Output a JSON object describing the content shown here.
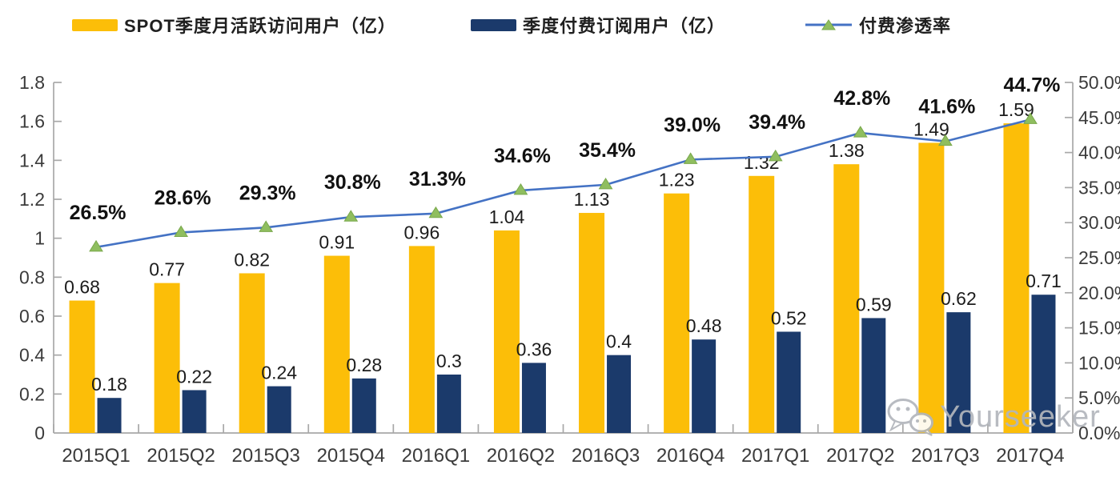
{
  "legend": {
    "items": [
      {
        "label": "SPOT季度月活跃访问用户（亿）",
        "swatch": "bar",
        "color": "#FCBE08"
      },
      {
        "label": "季度付费订阅用户（亿）",
        "swatch": "bar",
        "color": "#1B3A6B"
      },
      {
        "label": "付费渗透率",
        "swatch": "line-triangle",
        "line_color": "#4472C4",
        "marker_color": "#8FBE5F"
      }
    ]
  },
  "watermark": {
    "text": "Yourseeker",
    "icon": "wechat-icon",
    "color": "#b2b6bc"
  },
  "chart_data": {
    "type": "combo",
    "title": "",
    "legend_position": "top",
    "grid": false,
    "categories": [
      "2015Q1",
      "2015Q2",
      "2015Q3",
      "2015Q4",
      "2016Q1",
      "2016Q2",
      "2016Q3",
      "2016Q4",
      "2017Q1",
      "2017Q2",
      "2017Q3",
      "2017Q4"
    ],
    "series": [
      {
        "name": "SPOT季度月活跃访问用户（亿）",
        "type": "bar",
        "axis": "left",
        "color": "#FCBE08",
        "values": [
          0.68,
          0.77,
          0.82,
          0.91,
          0.96,
          1.04,
          1.13,
          1.23,
          1.32,
          1.38,
          1.49,
          1.59
        ],
        "labels": [
          "0.68",
          "0.77",
          "0.82",
          "0.91",
          "0.96",
          "1.04",
          "1.13",
          "1.23",
          "1.32",
          "1.38",
          "1.49",
          "1.59"
        ]
      },
      {
        "name": "季度付费订阅用户（亿）",
        "type": "bar",
        "axis": "left",
        "color": "#1B3A6B",
        "values": [
          0.18,
          0.22,
          0.24,
          0.28,
          0.3,
          0.36,
          0.4,
          0.48,
          0.52,
          0.59,
          0.62,
          0.71
        ],
        "labels": [
          "0.18",
          "0.22",
          "0.24",
          "0.28",
          "0.3",
          "0.36",
          "0.4",
          "0.48",
          "0.52",
          "0.59",
          "0.62",
          "0.71"
        ]
      },
      {
        "name": "付费渗透率",
        "type": "line",
        "axis": "right",
        "color": "#4472C4",
        "marker": "triangle",
        "marker_color": "#8FBE5F",
        "marker_edge_color": "#79A84B",
        "values": [
          26.5,
          28.6,
          29.3,
          30.8,
          31.3,
          34.6,
          35.4,
          39.0,
          39.4,
          42.8,
          41.6,
          44.7
        ],
        "labels": [
          "26.5%",
          "28.6%",
          "29.3%",
          "30.8%",
          "31.3%",
          "34.6%",
          "35.4%",
          "39.0%",
          "39.4%",
          "42.8%",
          "41.6%",
          "44.7%"
        ]
      }
    ],
    "left_axis": {
      "min": 0,
      "max": 1.8,
      "step": 0.2,
      "tick_labels": [
        "0",
        "0.2",
        "0.4",
        "0.6",
        "0.8",
        "1",
        "1.2",
        "1.4",
        "1.6",
        "1.8"
      ]
    },
    "right_axis": {
      "min": 0,
      "max": 50,
      "step": 5,
      "tick_labels": [
        "0.0%",
        "5.0%",
        "10.0%",
        "15.0%",
        "20.0%",
        "25.0%",
        "30.0%",
        "35.0%",
        "40.0%",
        "45.0%",
        "50.0%"
      ]
    }
  }
}
